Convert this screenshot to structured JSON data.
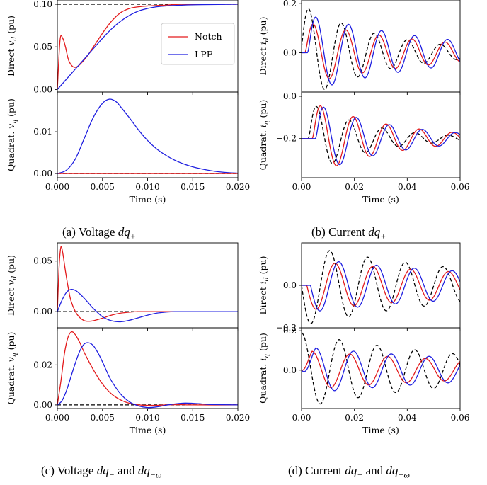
{
  "legend": {
    "notch": "Notch",
    "lpf": "LPF"
  },
  "colors": {
    "notch": "#e31a1c",
    "lpf": "#1f1fe0",
    "ref": "#000000"
  },
  "captions": [
    {
      "pre": "(a) Voltage ",
      "math": "dq",
      "sub": "+",
      "post": ""
    },
    {
      "pre": "(b) Current ",
      "math": "dq",
      "sub": "+",
      "post": ""
    },
    {
      "pre": "(c) Voltage ",
      "math": "dq",
      "sub": "−",
      "post": " and ",
      "math2": "dq",
      "sub2": "−ω"
    },
    {
      "pre": "(d) Current ",
      "math": "dq",
      "sub": "−",
      "post": " and ",
      "math2": "dq",
      "sub2": "−ω"
    }
  ],
  "chart_data": [
    {
      "type": "line",
      "title": "",
      "xlabel": "Time (s)",
      "ylabel": "Direct v_d (pu)",
      "xlim": [
        0,
        0.02
      ],
      "ylim": [
        -0.003,
        0.105
      ],
      "xticks": [
        0.0,
        0.005,
        0.01,
        0.015,
        0.02
      ],
      "xticklabels": [
        "0.000",
        "0.005",
        "0.010",
        "0.015",
        "0.020"
      ],
      "yticks": [
        0.0,
        0.05,
        0.1
      ],
      "yticklabels": [
        "0.00",
        "0.05",
        "0.10"
      ],
      "legend": "top-right",
      "series": [
        {
          "name": "Notch",
          "role": "notch",
          "x": [
            0,
            0.0003,
            0.0006,
            0.0009,
            0.0013,
            0.002,
            0.003,
            0.004,
            0.005,
            0.006,
            0.007,
            0.008,
            0.009,
            0.01,
            0.012,
            0.014,
            0.017,
            0.02
          ],
          "y": [
            0.0,
            0.058,
            0.06,
            0.05,
            0.033,
            0.026,
            0.035,
            0.05,
            0.066,
            0.08,
            0.09,
            0.095,
            0.097,
            0.098,
            0.099,
            0.1,
            0.1,
            0.1
          ]
        },
        {
          "name": "LPF",
          "role": "lpf",
          "x": [
            0,
            0.001,
            0.002,
            0.003,
            0.004,
            0.005,
            0.006,
            0.007,
            0.008,
            0.009,
            0.01,
            0.011,
            0.012,
            0.014,
            0.016,
            0.02
          ],
          "y": [
            0.0,
            0.012,
            0.024,
            0.036,
            0.048,
            0.06,
            0.071,
            0.08,
            0.087,
            0.092,
            0.095,
            0.097,
            0.098,
            0.099,
            0.0995,
            0.1
          ]
        },
        {
          "role": "ref",
          "dashed": true,
          "x": [
            0,
            0.02
          ],
          "y": [
            0.1,
            0.1
          ]
        }
      ]
    },
    {
      "type": "line",
      "title": "",
      "xlabel": "Time (s)",
      "ylabel": "Quadrat. v_q (pu)",
      "xlim": [
        0,
        0.02
      ],
      "ylim": [
        -0.001,
        0.0195
      ],
      "xticks": [
        0.0,
        0.005,
        0.01,
        0.015,
        0.02
      ],
      "xticklabels": [
        "0.000",
        "0.005",
        "0.010",
        "0.015",
        "0.020"
      ],
      "yticks": [
        0.0,
        0.01
      ],
      "yticklabels": [
        "0.00",
        "0.01"
      ],
      "series": [
        {
          "name": "LPF",
          "role": "lpf",
          "x": [
            0,
            0.001,
            0.002,
            0.003,
            0.004,
            0.005,
            0.0058,
            0.0065,
            0.007,
            0.008,
            0.009,
            0.01,
            0.011,
            0.012,
            0.013,
            0.014,
            0.015,
            0.016,
            0.017,
            0.018,
            0.019,
            0.02
          ],
          "y": [
            0,
            0.0008,
            0.0035,
            0.0085,
            0.0135,
            0.0168,
            0.0178,
            0.0172,
            0.016,
            0.0133,
            0.0104,
            0.0079,
            0.0059,
            0.0044,
            0.0032,
            0.0023,
            0.0016,
            0.0011,
            0.0007,
            0.0004,
            0.0002,
            0.0001
          ]
        },
        {
          "name": "Notch",
          "role": "notch",
          "x": [
            0,
            0.02
          ],
          "y": [
            0,
            0
          ]
        },
        {
          "role": "ref",
          "dashed": true,
          "x": [
            0,
            0.02
          ],
          "y": [
            0,
            0
          ]
        }
      ]
    },
    {
      "type": "line",
      "title": "",
      "xlabel": "Time (s)",
      "ylabel": "Direct i_d (pu)",
      "xlim": [
        0,
        0.06
      ],
      "ylim": [
        -0.16,
        0.215
      ],
      "xticks": [
        0.0,
        0.02,
        0.04,
        0.06
      ],
      "xticklabels": [
        "0.00",
        "0.02",
        "0.04",
        "0.06"
      ],
      "yticks": [
        0.0,
        0.2
      ],
      "yticklabels": [
        "0.0",
        "0.2"
      ],
      "series": [
        {
          "role": "ref",
          "dashed": true,
          "func": "damped",
          "amp": 0.2,
          "tau": 0.03,
          "period": 0.0125,
          "phase": -0.0005,
          "yofs": 0
        },
        {
          "name": "Notch",
          "role": "notch",
          "func": "damped",
          "amp": 0.13,
          "tau": 0.05,
          "period": 0.0125,
          "phase": 0.0012,
          "yofs": 0
        },
        {
          "name": "LPF",
          "role": "lpf",
          "func": "damped",
          "amp": 0.165,
          "tau": 0.05,
          "period": 0.0125,
          "phase": 0.0022,
          "yofs": 0
        }
      ]
    },
    {
      "type": "line",
      "title": "",
      "xlabel": "Time (s)",
      "ylabel": "Quadrat. i_q (pu)",
      "xlim": [
        0,
        0.06
      ],
      "ylim": [
        -0.385,
        0.02
      ],
      "xticks": [
        0.0,
        0.02,
        0.04,
        0.06
      ],
      "xticklabels": [
        "0.00",
        "0.02",
        "0.04",
        "0.06"
      ],
      "yticks": [
        0.0,
        -0.2
      ],
      "yticklabels": [
        "0.0",
        "−0.2"
      ],
      "series": [
        {
          "role": "ref",
          "dashed": true,
          "func": "damped",
          "amp": 0.2,
          "tau": 0.022,
          "period": 0.0125,
          "phase": 0.0025,
          "yofs": -0.2
        },
        {
          "name": "Notch",
          "role": "notch",
          "func": "damped",
          "amp": 0.2,
          "tau": 0.03,
          "period": 0.0125,
          "phase": 0.004,
          "yofs": -0.2
        },
        {
          "name": "LPF",
          "role": "lpf",
          "func": "damped",
          "amp": 0.2,
          "tau": 0.03,
          "period": 0.0125,
          "phase": 0.0052,
          "yofs": -0.2
        }
      ]
    },
    {
      "type": "line",
      "title": "",
      "xlabel": "Time (s)",
      "ylabel": "Direct v_d (pu)",
      "xlim": [
        0,
        0.02
      ],
      "ylim": [
        -0.016,
        0.068
      ],
      "xticks": [
        0.0,
        0.005,
        0.01,
        0.015,
        0.02
      ],
      "xticklabels": [
        "0.000",
        "0.005",
        "0.010",
        "0.015",
        "0.020"
      ],
      "yticks": [
        0.0,
        0.05
      ],
      "yticklabels": [
        "0.00",
        "0.05"
      ],
      "series": [
        {
          "role": "ref",
          "dashed": true,
          "x": [
            0,
            0.02
          ],
          "y": [
            0,
            0
          ]
        },
        {
          "name": "Notch",
          "role": "notch",
          "x": [
            0,
            0.0002,
            0.0004,
            0.0006,
            0.0009,
            0.0012,
            0.0015,
            0.002,
            0.0025,
            0.003,
            0.0035,
            0.004,
            0.005,
            0.006,
            0.007,
            0.008,
            0.009,
            0.01,
            0.012,
            0.015,
            0.02
          ],
          "y": [
            0,
            0.045,
            0.064,
            0.058,
            0.04,
            0.024,
            0.011,
            0.0,
            -0.006,
            -0.009,
            -0.0095,
            -0.009,
            -0.0065,
            -0.0035,
            -0.0015,
            -0.0005,
            0.0,
            0.0,
            0.0,
            0.0,
            0.0
          ]
        },
        {
          "name": "LPF",
          "role": "lpf",
          "x": [
            0,
            0.0005,
            0.001,
            0.0015,
            0.002,
            0.0025,
            0.003,
            0.0035,
            0.004,
            0.005,
            0.006,
            0.007,
            0.008,
            0.009,
            0.01,
            0.011,
            0.012,
            0.013,
            0.015,
            0.02
          ],
          "y": [
            0,
            0.011,
            0.019,
            0.022,
            0.021,
            0.0175,
            0.013,
            0.008,
            0.003,
            -0.005,
            -0.009,
            -0.01,
            -0.0085,
            -0.006,
            -0.0035,
            -0.0015,
            -0.0005,
            0.0,
            0.0,
            0.0
          ]
        }
      ]
    },
    {
      "type": "line",
      "title": "",
      "xlabel": "Time (s)",
      "ylabel": "Quadrat. v_q (pu)",
      "xlim": [
        0,
        0.02
      ],
      "ylim": [
        -0.0018,
        0.0385
      ],
      "xticks": [
        0.0,
        0.005,
        0.01,
        0.015,
        0.02
      ],
      "xticklabels": [
        "0.000",
        "0.005",
        "0.010",
        "0.015",
        "0.020"
      ],
      "yticks": [
        0.0,
        0.02
      ],
      "yticklabels": [
        "0.00",
        "0.02"
      ],
      "series": [
        {
          "role": "ref",
          "dashed": true,
          "x": [
            0,
            0.02
          ],
          "y": [
            0,
            0
          ]
        },
        {
          "name": "Notch",
          "role": "notch",
          "x": [
            0,
            0.0004,
            0.0008,
            0.0012,
            0.0016,
            0.002,
            0.0025,
            0.003,
            0.004,
            0.005,
            0.006,
            0.007,
            0.008,
            0.009,
            0.01,
            0.011,
            0.012,
            0.013,
            0.014,
            0.015,
            0.02
          ],
          "y": [
            0,
            0.012,
            0.026,
            0.034,
            0.0365,
            0.035,
            0.031,
            0.026,
            0.0175,
            0.0105,
            0.0055,
            0.0025,
            0.0008,
            0.0,
            -0.0002,
            -0.0002,
            0.0,
            0.0001,
            0.0001,
            0.0,
            0.0
          ]
        },
        {
          "name": "LPF",
          "role": "lpf",
          "x": [
            0,
            0.0005,
            0.001,
            0.0015,
            0.002,
            0.0025,
            0.003,
            0.0035,
            0.004,
            0.0045,
            0.005,
            0.0055,
            0.006,
            0.007,
            0.008,
            0.009,
            0.01,
            0.011,
            0.012,
            0.013,
            0.014,
            0.015,
            0.016,
            0.017,
            0.02
          ],
          "y": [
            0,
            0.002,
            0.007,
            0.014,
            0.021,
            0.027,
            0.0305,
            0.031,
            0.0295,
            0.026,
            0.0215,
            0.0165,
            0.012,
            0.0055,
            0.0015,
            -0.0005,
            -0.0013,
            -0.001,
            -0.0002,
            0.0005,
            0.0009,
            0.0008,
            0.0005,
            0.0002,
            0.0
          ]
        }
      ]
    },
    {
      "type": "line",
      "title": "",
      "xlabel": "Time (s)",
      "ylabel": "Direct i_d (pu)",
      "xlim": [
        0,
        0.06
      ],
      "ylim": [
        -0.2,
        0.2
      ],
      "xticks": [
        0.0,
        0.02,
        0.04,
        0.06
      ],
      "xticklabels": [
        "0.00",
        "0.02",
        "0.04",
        "0.06"
      ],
      "yticks": [
        0.0,
        -0.2
      ],
      "yticklabels": [
        "0.0",
        "−0.2"
      ],
      "series": [
        {
          "role": "ref",
          "dashed": true,
          "func": "sine",
          "amp": 0.19,
          "tau": 0.07,
          "period": 0.0143,
          "phase": 0.0,
          "yofs": 0
        },
        {
          "name": "Notch",
          "role": "notch",
          "func": "sine",
          "amp": 0.12,
          "tau": 0.09,
          "period": 0.0143,
          "phase": 0.002,
          "yofs": 0
        },
        {
          "name": "LPF",
          "role": "lpf",
          "func": "sine",
          "amp": 0.13,
          "tau": 0.09,
          "period": 0.0143,
          "phase": 0.0034,
          "yofs": 0
        }
      ]
    },
    {
      "type": "line",
      "title": "",
      "xlabel": "Time (s)",
      "ylabel": "Quadrat. i_q (pu)",
      "xlim": [
        0,
        0.06
      ],
      "ylim": [
        -0.195,
        0.215
      ],
      "xticks": [
        0.0,
        0.02,
        0.04,
        0.06
      ],
      "xticklabels": [
        "0.00",
        "0.02",
        "0.04",
        "0.06"
      ],
      "yticks": [
        0.0,
        0.2
      ],
      "yticklabels": [
        "0.0",
        "0.2"
      ],
      "series": [
        {
          "role": "ref",
          "dashed": true,
          "func": "cosine",
          "amp": 0.19,
          "tau": 0.07,
          "period": 0.0143,
          "phase": 0.0,
          "yofs": 0
        },
        {
          "name": "Notch",
          "role": "notch",
          "func": "cosine",
          "amp": 0.1,
          "tau": 0.09,
          "period": 0.0143,
          "phase": 0.004,
          "yofs": 0
        },
        {
          "name": "LPF",
          "role": "lpf",
          "func": "cosine",
          "amp": 0.12,
          "tau": 0.09,
          "period": 0.0143,
          "phase": 0.0054,
          "yofs": 0
        }
      ]
    }
  ]
}
